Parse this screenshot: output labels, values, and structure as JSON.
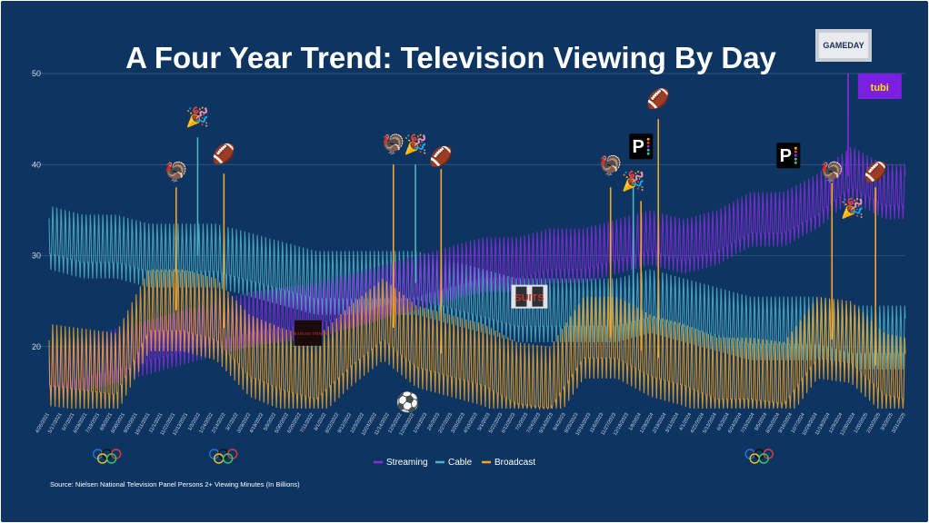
{
  "title": "A Four Year Trend: Television Viewing By Day",
  "source": "Source: Nielsen National Television Panel Persons 2+ Viewing Minutes (In Billions)",
  "colors": {
    "background": "#0e3461",
    "streaming": "#8a2be2",
    "cable": "#4fb3c4",
    "broadcast": "#f5a623"
  },
  "chart_data": {
    "type": "line",
    "ylim": [
      13,
      50
    ],
    "yticks": [
      20,
      30,
      40,
      50
    ],
    "grid": true,
    "legend_position": "bottom-center",
    "x_start": "4/26/2021",
    "x_end": "3/31/2025",
    "x_tick_labels": [
      "4/26/2021",
      "5/17/2021",
      "6/7/2021",
      "6/28/2021",
      "7/19/2021",
      "8/9/2021",
      "8/30/2021",
      "9/20/2021",
      "10/11/2021",
      "11/1/2021",
      "11/22/2021",
      "12/13/2021",
      "1/3/2022",
      "1/24/2022",
      "2/14/2022",
      "3/7/2022",
      "3/28/2022",
      "4/18/2022",
      "5/9/2022",
      "5/30/2022",
      "6/20/2022",
      "7/11/2022",
      "8/1/2022",
      "8/22/2022",
      "9/12/2022",
      "10/3/2022",
      "10/24/2022",
      "11/14/2022",
      "12/5/2022",
      "12/26/2022",
      "1/16/2023",
      "2/6/2023",
      "2/27/2023",
      "3/20/2023",
      "4/10/2023",
      "5/1/2023",
      "5/22/2023",
      "6/12/2023",
      "7/3/2023",
      "7/24/2023",
      "8/14/2023",
      "9/4/2023",
      "9/25/2023",
      "10/16/2023",
      "11/6/2023",
      "11/27/2023",
      "12/18/2023",
      "1/8/2024",
      "1/29/2024",
      "2/19/2024",
      "3/11/2024",
      "4/1/2024",
      "4/22/2024",
      "5/13/2024",
      "6/3/2024",
      "6/24/2024",
      "7/15/2024",
      "8/5/2024",
      "8/26/2024",
      "9/16/2024",
      "10/7/2024",
      "10/28/2024",
      "11/18/2024",
      "12/9/2024",
      "12/30/2024",
      "1/20/2025",
      "2/10/2025",
      "3/3/2025",
      "3/31/2025"
    ],
    "series": [
      {
        "name": "Streaming",
        "color": "#8a2be2",
        "x": [
          "4/26/2021",
          "6/21/2021",
          "8/16/2021",
          "10/11/2021",
          "12/6/2021",
          "1/31/2022",
          "3/28/2022",
          "5/23/2022",
          "7/18/2022",
          "9/12/2022",
          "11/7/2022",
          "1/2/2023",
          "2/27/2023",
          "4/24/2023",
          "6/19/2023",
          "8/14/2023",
          "10/9/2023",
          "12/4/2023",
          "1/29/2024",
          "3/25/2024",
          "5/20/2024",
          "7/15/2024",
          "9/9/2024",
          "11/4/2024",
          "12/30/2024",
          "2/24/2025",
          "3/31/2025"
        ],
        "values": [
          17,
          18,
          19,
          20,
          21,
          22,
          23,
          23.5,
          24,
          25,
          26,
          27,
          28,
          29,
          29,
          30,
          30,
          31,
          32,
          31,
          32,
          34,
          34,
          36,
          39,
          37,
          37
        ]
      },
      {
        "name": "Cable",
        "color": "#4fb3c4",
        "x": [
          "4/26/2021",
          "6/21/2021",
          "8/16/2021",
          "10/11/2021",
          "12/6/2021",
          "1/31/2022",
          "3/28/2022",
          "5/23/2022",
          "7/18/2022",
          "9/12/2022",
          "11/7/2022",
          "1/2/2023",
          "2/27/2023",
          "4/24/2023",
          "6/19/2023",
          "8/14/2023",
          "10/9/2023",
          "12/4/2023",
          "1/29/2024",
          "3/25/2024",
          "5/20/2024",
          "7/15/2024",
          "9/9/2024",
          "11/4/2024",
          "12/30/2024",
          "2/24/2025",
          "3/31/2025"
        ],
        "values": [
          32,
          31,
          31,
          30,
          30,
          30,
          29,
          28,
          27,
          27,
          27,
          27,
          26,
          25,
          24,
          24,
          24,
          24,
          25,
          24,
          23,
          22,
          22,
          22,
          21,
          21,
          21
        ]
      },
      {
        "name": "Broadcast",
        "color": "#f5a623",
        "x": [
          "4/26/2021",
          "6/21/2021",
          "8/16/2021",
          "10/11/2021",
          "12/6/2021",
          "1/31/2022",
          "3/28/2022",
          "5/23/2022",
          "7/18/2022",
          "9/12/2022",
          "11/7/2022",
          "1/2/2023",
          "2/27/2023",
          "4/24/2023",
          "6/19/2023",
          "8/14/2023",
          "10/9/2023",
          "12/4/2023",
          "1/29/2024",
          "3/25/2024",
          "5/20/2024",
          "7/15/2024",
          "9/9/2024",
          "11/4/2024",
          "12/30/2024",
          "2/24/2025",
          "3/31/2025"
        ],
        "values": [
          18,
          17.5,
          17,
          24,
          24,
          23,
          19,
          17.5,
          16.5,
          20,
          23,
          20,
          19,
          18,
          16,
          15.5,
          21,
          21,
          19,
          18,
          16.5,
          16.5,
          16,
          21,
          20.5,
          17,
          16.5
        ]
      }
    ],
    "spikes": [
      {
        "series": "Cable",
        "x": "12/31/2021",
        "value": 43
      },
      {
        "series": "Broadcast",
        "x": "11/25/2021",
        "value": 37.5
      },
      {
        "series": "Broadcast",
        "x": "2/13/2022",
        "value": 39
      },
      {
        "series": "Broadcast",
        "x": "11/24/2022",
        "value": 40
      },
      {
        "series": "Cable",
        "x": "12/31/2022",
        "value": 40
      },
      {
        "series": "Broadcast",
        "x": "2/12/2023",
        "value": 39.5
      },
      {
        "series": "Broadcast",
        "x": "11/23/2023",
        "value": 37.5
      },
      {
        "series": "Cable",
        "x": "12/31/2023",
        "value": 38.5
      },
      {
        "series": "Broadcast",
        "x": "1/13/2024",
        "value": 36
      },
      {
        "series": "Broadcast",
        "x": "2/11/2024",
        "value": 45
      },
      {
        "series": "Broadcast",
        "x": "11/28/2024",
        "value": 38
      },
      {
        "series": "Streaming",
        "x": "12/25/2024",
        "value": 50
      },
      {
        "series": "Broadcast",
        "x": "2/9/2025",
        "value": 37.5
      }
    ],
    "legend": [
      "Streaming",
      "Cable",
      "Broadcast"
    ]
  },
  "annotations": [
    {
      "icon": "turkey-icon",
      "glyph": "🦃",
      "x": "11/25/2021",
      "value": 38.5
    },
    {
      "icon": "party-popper-icon",
      "glyph": "🎉",
      "x": "12/31/2021",
      "value": 44.5
    },
    {
      "icon": "football-icon",
      "glyph": "🏈",
      "x": "2/13/2022",
      "value": 40.5
    },
    {
      "icon": "turkey-icon",
      "glyph": "🦃",
      "x": "11/24/2022",
      "value": 41.5
    },
    {
      "icon": "party-popper-icon",
      "glyph": "🎉",
      "x": "12/31/2022",
      "value": 41.5
    },
    {
      "icon": "football-icon",
      "glyph": "🏈",
      "x": "2/12/2023",
      "value": 40.2
    },
    {
      "icon": "turkey-icon",
      "glyph": "🦃",
      "x": "11/23/2023",
      "value": 39.2
    },
    {
      "icon": "party-popper-icon",
      "glyph": "🎉",
      "x": "12/31/2023",
      "value": 37.5
    },
    {
      "icon": "football-icon",
      "glyph": "🏈",
      "x": "2/11/2024",
      "value": 46.5
    },
    {
      "icon": "turkey-icon",
      "glyph": "🦃",
      "x": "11/28/2024",
      "value": 38.5
    },
    {
      "icon": "football-icon",
      "glyph": "🏈",
      "x": "2/9/2025",
      "value": 38.5
    },
    {
      "icon": "party-popper-icon",
      "glyph": "🎉",
      "x": "1/1/2025",
      "value": 34.5
    },
    {
      "icon": "soccer-ball-icon",
      "glyph": "⚽",
      "x": "12/18/2022",
      "value": 13.2
    }
  ],
  "logos": [
    {
      "name": "peacock-logo-icon",
      "x": "1/13/2024",
      "value": 42
    },
    {
      "name": "peacock-logo-icon",
      "x": "9/16/2024",
      "value": 41
    },
    {
      "name": "stranger-things-logo-icon",
      "x": "7/4/2022",
      "value": 21.5
    },
    {
      "name": "suits-logo-icon",
      "x": "7/10/2023",
      "value": 25.5
    },
    {
      "name": "tubi-logo-icon",
      "x": "2/16/2025",
      "value": 48.5
    }
  ],
  "olympics": [
    {
      "x": "8/1/2021"
    },
    {
      "x": "2/12/2022"
    },
    {
      "x": "7/29/2024"
    }
  ],
  "logo_texts": {
    "suits": "SUITS",
    "tubi": "tubi",
    "peacock": "P",
    "stranger": "STRANGER THINGS",
    "gameday": "GAMEDAY"
  }
}
